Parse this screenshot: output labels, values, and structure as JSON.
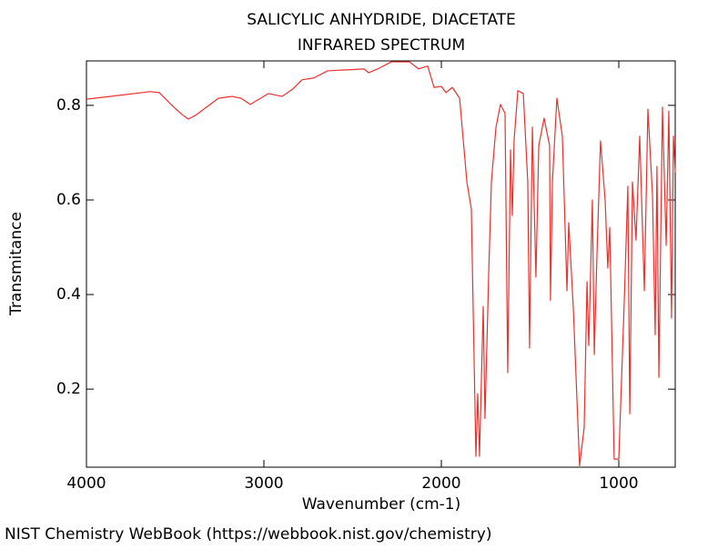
{
  "chart_data": {
    "type": "line",
    "title": "SALICYLIC ANHYDRIDE, DIACETATE",
    "subtitle": "INFRARED SPECTRUM",
    "x_label": "Wavenumber (cm-1)",
    "y_label": "Transmitance",
    "footer": "NIST Chemistry WebBook (https://webbook.nist.gov/chemistry)",
    "color": "#e8322e",
    "xlim": [
      4000,
      682
    ],
    "ylim": [
      0.035,
      0.894
    ],
    "xticks": [
      4000,
      3000,
      2000,
      1000
    ],
    "yticks": [
      0.2,
      0.4,
      0.6,
      0.8
    ],
    "x": [
      4000,
      3641,
      3590,
      3513,
      3462,
      3426,
      3385,
      3256,
      3179,
      3128,
      3077,
      2974,
      2897,
      2836,
      2785,
      2718,
      2641,
      2538,
      2436,
      2410,
      2359,
      2282,
      2179,
      2128,
      2077,
      2041,
      2000,
      1974,
      1938,
      1897,
      1856,
      1831,
      1815,
      1805,
      1795,
      1785,
      1764,
      1754,
      1733,
      1718,
      1692,
      1667,
      1641,
      1626,
      1610,
      1600,
      1590,
      1569,
      1538,
      1513,
      1503,
      1487,
      1467,
      1451,
      1421,
      1390,
      1385,
      1374,
      1349,
      1318,
      1292,
      1282,
      1256,
      1221,
      1195,
      1179,
      1169,
      1149,
      1138,
      1123,
      1103,
      1077,
      1062,
      1051,
      1026,
      1000,
      969,
      949,
      938,
      923,
      903,
      882,
      856,
      836,
      810,
      795,
      785,
      774,
      754,
      733,
      718,
      703,
      692,
      682
    ],
    "values": [
      0.813,
      0.829,
      0.827,
      0.798,
      0.781,
      0.771,
      0.779,
      0.815,
      0.819,
      0.815,
      0.802,
      0.825,
      0.819,
      0.835,
      0.854,
      0.858,
      0.873,
      0.875,
      0.877,
      0.869,
      0.877,
      0.892,
      0.892,
      0.877,
      0.883,
      0.838,
      0.84,
      0.827,
      0.838,
      0.815,
      0.638,
      0.581,
      0.254,
      0.058,
      0.19,
      0.058,
      0.375,
      0.138,
      0.446,
      0.638,
      0.754,
      0.802,
      0.783,
      0.235,
      0.706,
      0.567,
      0.725,
      0.831,
      0.825,
      0.638,
      0.287,
      0.754,
      0.437,
      0.715,
      0.773,
      0.715,
      0.388,
      0.638,
      0.815,
      0.735,
      0.408,
      0.552,
      0.369,
      0.038,
      0.119,
      0.427,
      0.292,
      0.6,
      0.273,
      0.485,
      0.725,
      0.6,
      0.456,
      0.542,
      0.052,
      0.052,
      0.388,
      0.629,
      0.148,
      0.638,
      0.515,
      0.735,
      0.408,
      0.792,
      0.61,
      0.315,
      0.671,
      0.225,
      0.796,
      0.504,
      0.788,
      0.35,
      0.735,
      0.658
    ]
  }
}
